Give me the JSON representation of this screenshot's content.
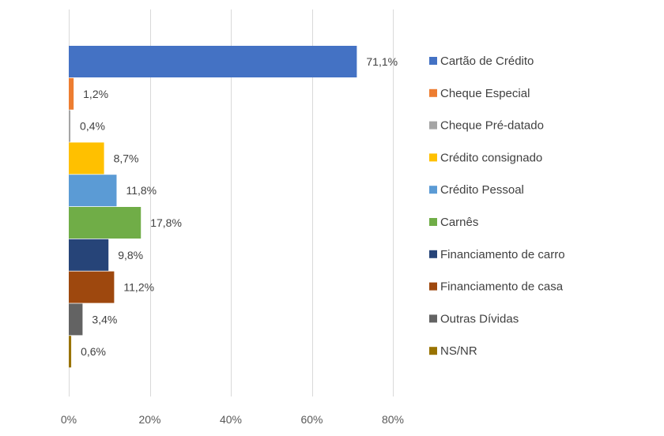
{
  "chart_data": {
    "type": "bar",
    "orientation": "horizontal",
    "title": "",
    "xlabel": "",
    "ylabel": "",
    "xlim": [
      0,
      80
    ],
    "x_ticks": [
      0,
      20,
      40,
      60,
      80
    ],
    "x_tick_labels": [
      "0%",
      "20%",
      "40%",
      "60%",
      "80%"
    ],
    "grid": true,
    "legend_position": "right",
    "categories": [
      "Cartão de Crédito",
      "Cheque Especial",
      "Cheque Pré-datado",
      "Crédito consignado",
      "Crédito Pessoal",
      "Carnês",
      "Financiamento de carro",
      "Financiamento de casa",
      "Outras Dívidas",
      "NS/NR"
    ],
    "values": [
      71.1,
      1.2,
      0.4,
      8.7,
      11.8,
      17.8,
      9.8,
      11.2,
      3.4,
      0.6
    ],
    "value_labels": [
      "71,1%",
      "1,2%",
      "0,4%",
      "8,7%",
      "11,8%",
      "17,8%",
      "9,8%",
      "11,2%",
      "3,4%",
      "0,6%"
    ],
    "colors": [
      "#4472C4",
      "#ED7D31",
      "#A5A5A5",
      "#FFC000",
      "#5B9BD5",
      "#70AD47",
      "#264478",
      "#9E480E",
      "#636363",
      "#997300"
    ]
  }
}
